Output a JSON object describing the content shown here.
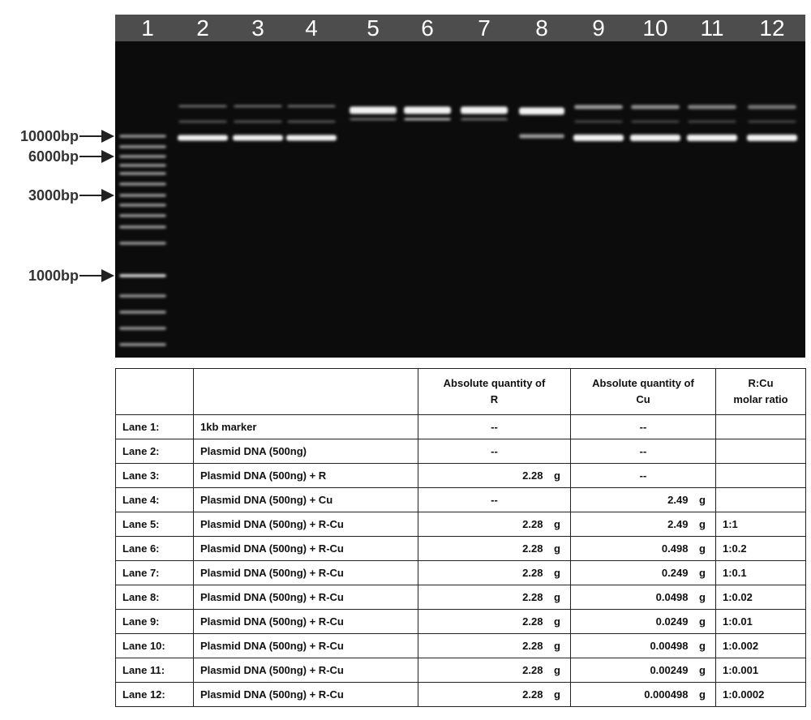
{
  "gel": {
    "lanes": [
      "1",
      "2",
      "3",
      "4",
      "5",
      "6",
      "7",
      "8",
      "9",
      "10",
      "11",
      "12"
    ],
    "markers": [
      "10000bp",
      "6000bp",
      "3000bp",
      "1000bp"
    ]
  },
  "table": {
    "header": {
      "r": [
        "Absolute quantity of",
        "R"
      ],
      "cu": [
        "Absolute quantity of",
        "Cu"
      ],
      "ratio": [
        "R:Cu",
        "molar ratio"
      ]
    },
    "rows": [
      {
        "lane": "Lane 1:",
        "sample": "1kb marker",
        "r": "--",
        "cu": "--"
      },
      {
        "lane": "Lane 2:",
        "sample": "Plasmid DNA (500ng)",
        "r": "--",
        "cu": "--"
      },
      {
        "lane": "Lane 3:",
        "sample": "Plasmid DNA (500ng) + R",
        "r": "2.28 g",
        "cu": "--"
      },
      {
        "lane": "Lane 4:",
        "sample": "Plasmid DNA (500ng) + Cu",
        "r": "--",
        "cu": "2.49 g"
      },
      {
        "lane": "Lane 5:",
        "sample": "Plasmid DNA (500ng) + R-Cu",
        "r": "2.28 g",
        "cu": "2.49 g",
        "ratio": "1:1"
      },
      {
        "lane": "Lane 6:",
        "sample": "Plasmid DNA (500ng) + R-Cu",
        "r": "2.28 g",
        "cu": "0.498 g",
        "ratio": "1:0.2"
      },
      {
        "lane": "Lane 7:",
        "sample": "Plasmid DNA (500ng) + R-Cu",
        "r": "2.28 g",
        "cu": "0.249 g",
        "ratio": "1:0.1"
      },
      {
        "lane": "Lane 8:",
        "sample": "Plasmid DNA (500ng) + R-Cu",
        "r": "2.28 g",
        "cu": "0.0498 g",
        "ratio": "1:0.02"
      },
      {
        "lane": "Lane 9:",
        "sample": "Plasmid DNA (500ng) + R-Cu",
        "r": "2.28 g",
        "cu": "0.0249 g",
        "ratio": "1:0.01"
      },
      {
        "lane": "Lane 10:",
        "sample": "Plasmid DNA (500ng) + R-Cu",
        "r": "2.28 g",
        "cu": "0.00498 g",
        "ratio": "1:0.002"
      },
      {
        "lane": "Lane 11:",
        "sample": "Plasmid DNA (500ng) + R-Cu",
        "r": "2.28 g",
        "cu": "0.00249 g",
        "ratio": "1:0.001"
      },
      {
        "lane": "Lane 12:",
        "sample": "Plasmid DNA (500ng) + R-Cu",
        "r": "2.28 g",
        "cu": "0.000498 g",
        "ratio": "1:0.0002"
      }
    ]
  }
}
